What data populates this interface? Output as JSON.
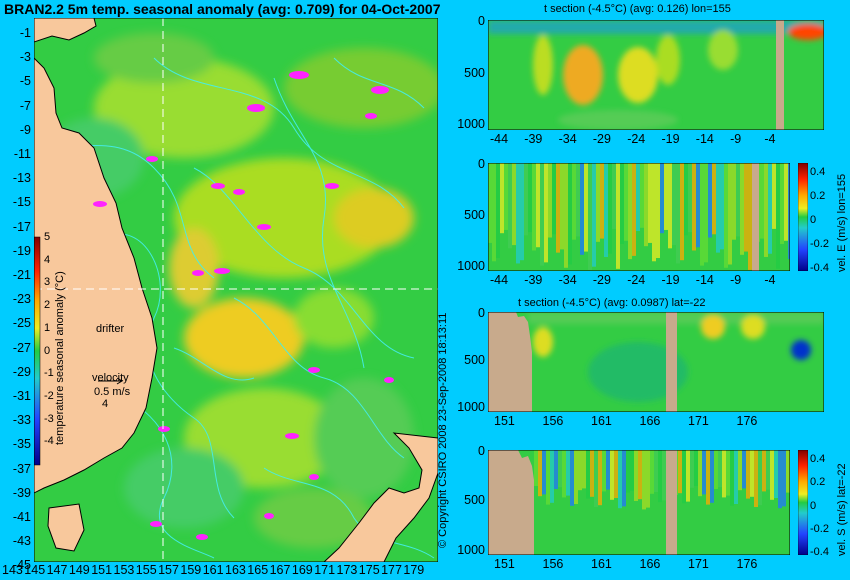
{
  "map": {
    "title": "BRAN2.2 5m temp. seasonal anomaly (avg: 0.709) for 04-Oct-2007",
    "lat_ticks": [
      "-1",
      "-3",
      "-5",
      "-7",
      "-9",
      "-11",
      "-13",
      "-15",
      "-17",
      "-19",
      "-21",
      "-23",
      "-25",
      "-27",
      "-29",
      "-31",
      "-33",
      "-35",
      "-37",
      "-39",
      "-41",
      "-43",
      "-45"
    ],
    "lon_ticks": [
      "143",
      "145",
      "147",
      "149",
      "151",
      "153",
      "155",
      "157",
      "159",
      "161",
      "163",
      "165",
      "167",
      "169",
      "171",
      "173",
      "175",
      "177",
      "179"
    ],
    "colorbar": {
      "label": "temperature seasonal anomaly (°C)",
      "ticks": [
        "5",
        "4",
        "3",
        "2",
        "1",
        "0",
        "-1",
        "-2",
        "-3",
        "-4"
      ]
    },
    "drifter_label": "drifter",
    "velocity_label": "velocity",
    "velocity_scale": "0.5 m/s",
    "velocity_value": "4"
  },
  "panels": [
    {
      "title": "t section (-4.5°C) (avg: 0.126) lon=155",
      "y_ticks": [
        "0",
        "500",
        "1000"
      ],
      "x_ticks": [
        "-44",
        "-39",
        "-34",
        "-29",
        "-24",
        "-19",
        "-14",
        "-9",
        "-4"
      ]
    },
    {
      "title": "",
      "y_ticks": [
        "0",
        "500",
        "1000"
      ],
      "x_ticks": [
        "-44",
        "-39",
        "-34",
        "-29",
        "-24",
        "-19",
        "-14",
        "-9",
        "-4"
      ],
      "cb_label": "vel. E (m/s) lon=155",
      "cb_ticks": [
        "0.4",
        "0.2",
        "0",
        "-0.2",
        "-0.4"
      ]
    },
    {
      "title": "t section (-4.5°C) (avg: 0.0987) lat=-22",
      "y_ticks": [
        "0",
        "500",
        "1000"
      ],
      "x_ticks": [
        "151",
        "156",
        "161",
        "166",
        "171",
        "176"
      ]
    },
    {
      "title": "",
      "y_ticks": [
        "0",
        "500",
        "1000"
      ],
      "x_ticks": [
        "151",
        "156",
        "161",
        "166",
        "171",
        "176"
      ],
      "cb_label": "vel. S (m/s) lat=-22",
      "cb_ticks": [
        "0.4",
        "0.2",
        "0",
        "-0.2",
        "-0.4"
      ]
    }
  ],
  "copyright": "© Copyright CSIRO 2008   23-Sep-2008 18:13:11",
  "colors": {
    "background": "#00ccff",
    "land": "#f8c89c",
    "section_land": "#c8aa8c",
    "drifter": "#ff22ff",
    "contour": "#44eeee",
    "ocean_base": "#22cc44"
  }
}
